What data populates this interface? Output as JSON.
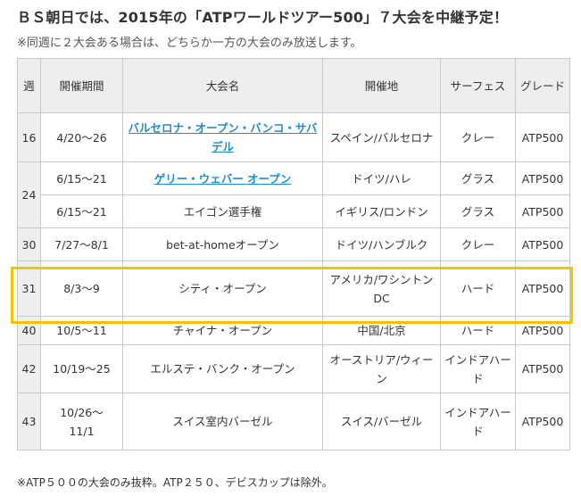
{
  "title": "ＢＳ朝日では、2015年の「ATPワールドツアー500」７大会を中継予定！",
  "subtitle": "※同週に２大会ある場合は、どちらか一方の大会のみ放送します。",
  "table": {
    "headers": {
      "week": "週",
      "period": "開催期間",
      "name": "大会名",
      "venue": "開催地",
      "surface": "サーフェス",
      "grade": "グレード"
    },
    "rows": [
      {
        "week": "16",
        "period": "4/20～26",
        "name": "バルセロナ・オープン・バンコ・サバデル",
        "link": true,
        "venue": "スペイン/バルセロナ",
        "surface": "クレー",
        "grade": "ATP500"
      },
      {
        "week": "24",
        "period": "6/15～21",
        "name": "ゲリー・ウェバー オープン",
        "link": true,
        "venue": "ドイツ/ハレ",
        "surface": "グラス",
        "grade": "ATP500"
      },
      {
        "week": "",
        "period": "6/15～21",
        "name": "エイゴン選手権",
        "link": false,
        "venue": "イギリス/ロンドン",
        "surface": "グラス",
        "grade": "ATP500"
      },
      {
        "week": "30",
        "period": "7/27～8/1",
        "name": "bet-at-homeオープン",
        "link": false,
        "venue": "ドイツ/ハンブルク",
        "surface": "クレー",
        "grade": "ATP500"
      },
      {
        "week": "31",
        "period": "8/3～9",
        "name": "シティ・オープン",
        "link": false,
        "venue": "アメリカ/ワシントンDC",
        "surface": "ハード",
        "grade": "ATP500"
      },
      {
        "week": "40",
        "period": "10/5～11",
        "name": "チャイナ・オープン",
        "link": false,
        "venue": "中国/北京",
        "surface": "ハード",
        "grade": "ATP500"
      },
      {
        "week": "42",
        "period": "10/19～25",
        "name": "エルステ・バンク・オープン",
        "link": false,
        "venue": "オーストリア/ウィーン",
        "surface": "インドアハード",
        "grade": "ATP500"
      },
      {
        "week": "43",
        "period": "10/26～11/1",
        "name": "スイス室内バーゼル",
        "link": false,
        "venue": "スイス/バーゼル",
        "surface": "インドアハード",
        "grade": "ATP500"
      }
    ]
  },
  "note": "※ATP５００の大会のみ抜粋。ATP２５０、デビスカップは除外。",
  "colors": {
    "link": "#1b8fc9",
    "highlight_border": "#f5c400",
    "header_bg": "#eeeeee",
    "border": "#c9c9c9"
  }
}
